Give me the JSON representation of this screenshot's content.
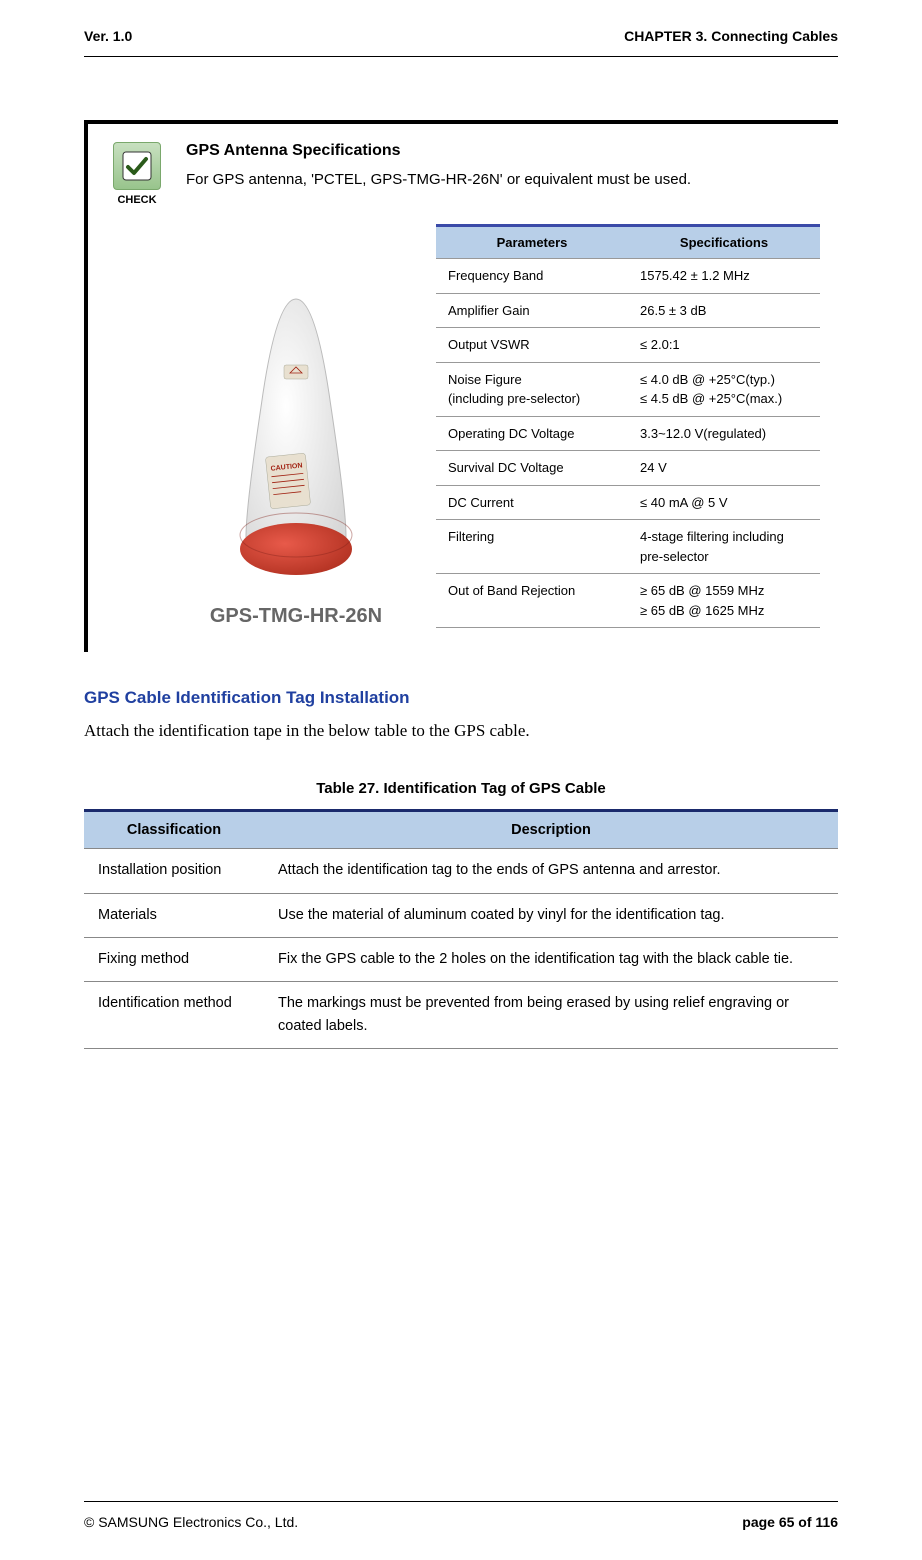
{
  "header": {
    "left": "Ver.   1.0",
    "right": "CHAPTER 3. Connecting Cables"
  },
  "note": {
    "check_label": "CHECK",
    "title": "GPS Antenna Specifications",
    "desc": "For GPS antenna, 'PCTEL, GPS-TMG-HR-26N' or equivalent must be used.",
    "antenna_label": "GPS-TMG-HR-26N",
    "spec_table": {
      "headers": [
        "Parameters",
        "Specifications"
      ],
      "rows": [
        [
          "Frequency Band",
          "1575.42 ± 1.2 MHz"
        ],
        [
          "Amplifier Gain",
          "26.5 ± 3 dB"
        ],
        [
          "Output VSWR",
          "≤ 2.0:1"
        ],
        [
          "Noise Figure\n(including pre-selector)",
          "≤ 4.0 dB @ +25°C(typ.)\n≤ 4.5 dB @ +25°C(max.)"
        ],
        [
          "Operating DC Voltage",
          "3.3~12.0 V(regulated)"
        ],
        [
          "Survival DC Voltage",
          "24 V"
        ],
        [
          "DC Current",
          "≤ 40 mA @ 5 V"
        ],
        [
          "Filtering",
          "4-stage filtering including pre-selector"
        ],
        [
          "Out of Band Rejection",
          "≥ 65 dB @ 1559 MHz\n≥ 65 dB @ 1625 MHz"
        ]
      ]
    }
  },
  "section": {
    "title": "GPS Cable Identification Tag Installation",
    "body": "Attach the identification tape in the below table to the GPS cable."
  },
  "id_table": {
    "caption": "Table 27. Identification Tag of GPS Cable",
    "headers": [
      "Classification",
      "Description"
    ],
    "rows": [
      [
        "Installation position",
        "Attach the identification tag to the ends of GPS antenna and arrestor."
      ],
      [
        "Materials",
        "Use the material of aluminum coated by vinyl for the identification tag."
      ],
      [
        "Fixing method",
        "Fix the GPS cable to the 2 holes on the identification tag with the black cable tie."
      ],
      [
        "Identification method",
        "The markings must be prevented from being erased by using relief engraving or coated labels."
      ]
    ]
  },
  "footer": {
    "left": "© SAMSUNG Electronics Co., Ltd.",
    "right": "page 65 of 116"
  },
  "colors": {
    "link_blue": "#2040a0",
    "table_header_bg": "#b8cfe8",
    "table_top_border": "#1a2a6c"
  }
}
